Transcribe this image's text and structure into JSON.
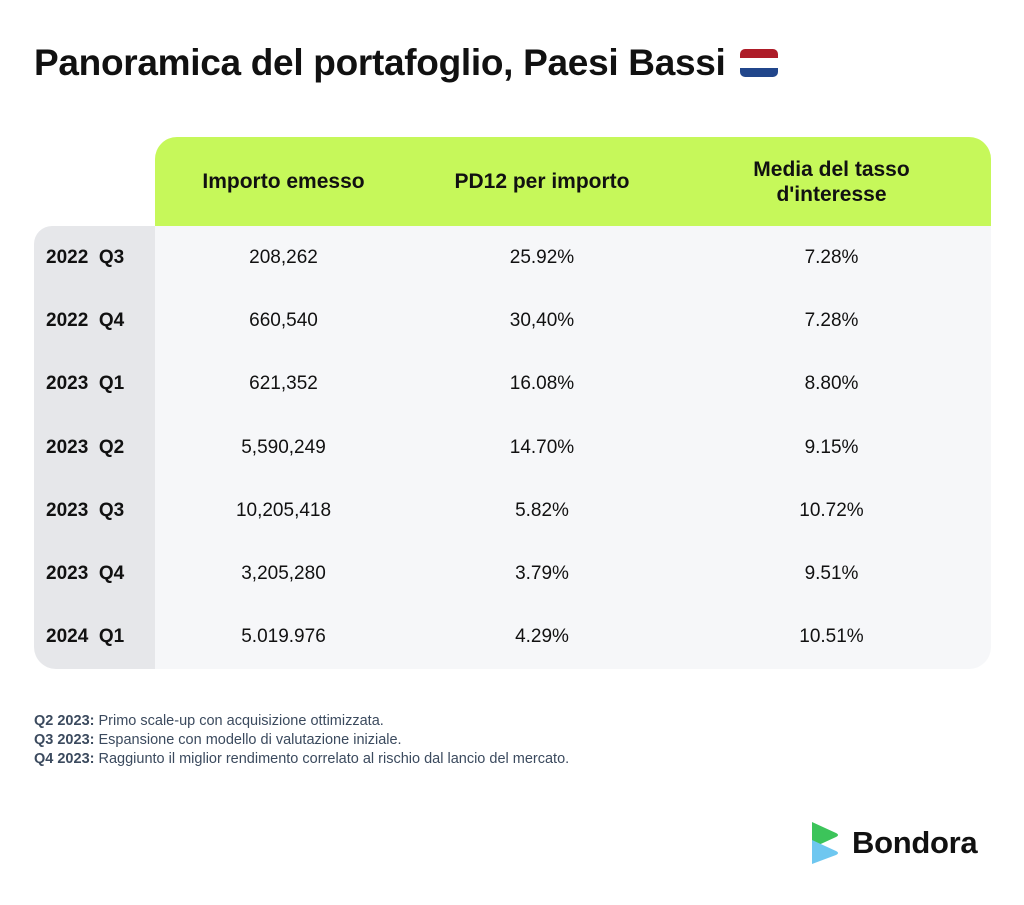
{
  "title": "Panoramica del portafoglio, Paesi Bassi",
  "flag_colors": [
    "#ae1c28",
    "#ffffff",
    "#21468b"
  ],
  "accent_color": "#c6f85a",
  "table": {
    "columns": [
      "Importo emesso",
      "PD12 per importo",
      "Media del tasso d'interesse"
    ],
    "rows": [
      {
        "label": "2022  Q3",
        "values": [
          "208,262",
          "25.92%",
          "7.28%"
        ]
      },
      {
        "label": "2022  Q4",
        "values": [
          "660,540",
          "30,40%",
          "7.28%"
        ]
      },
      {
        "label": "2023  Q1",
        "values": [
          "621,352",
          "16.08%",
          "8.80%"
        ]
      },
      {
        "label": "2023  Q2",
        "values": [
          "5,590,249",
          "14.70%",
          "9.15%"
        ]
      },
      {
        "label": "2023  Q3",
        "values": [
          "10,205,418",
          "5.82%",
          "10.72%"
        ]
      },
      {
        "label": "2023  Q4",
        "values": [
          "3,205,280",
          "3.79%",
          "9.51%"
        ]
      },
      {
        "label": "2024  Q1",
        "values": [
          "5.019.976",
          "4.29%",
          "10.51%"
        ]
      }
    ]
  },
  "notes": [
    {
      "key": "Q2 2023:",
      "text": " Primo scale-up con acquisizione ottimizzata."
    },
    {
      "key": "Q3 2023:",
      "text": " Espansione con modello di valutazione iniziale."
    },
    {
      "key": "Q4 2023:",
      "text": " Raggiunto il miglior rendimento correlato al rischio dal lancio del mercato."
    }
  ],
  "brand": {
    "name": "Bondora",
    "icon": "bondora-logo-icon",
    "colors": [
      "#3cc45a",
      "#6ec7f0"
    ]
  }
}
